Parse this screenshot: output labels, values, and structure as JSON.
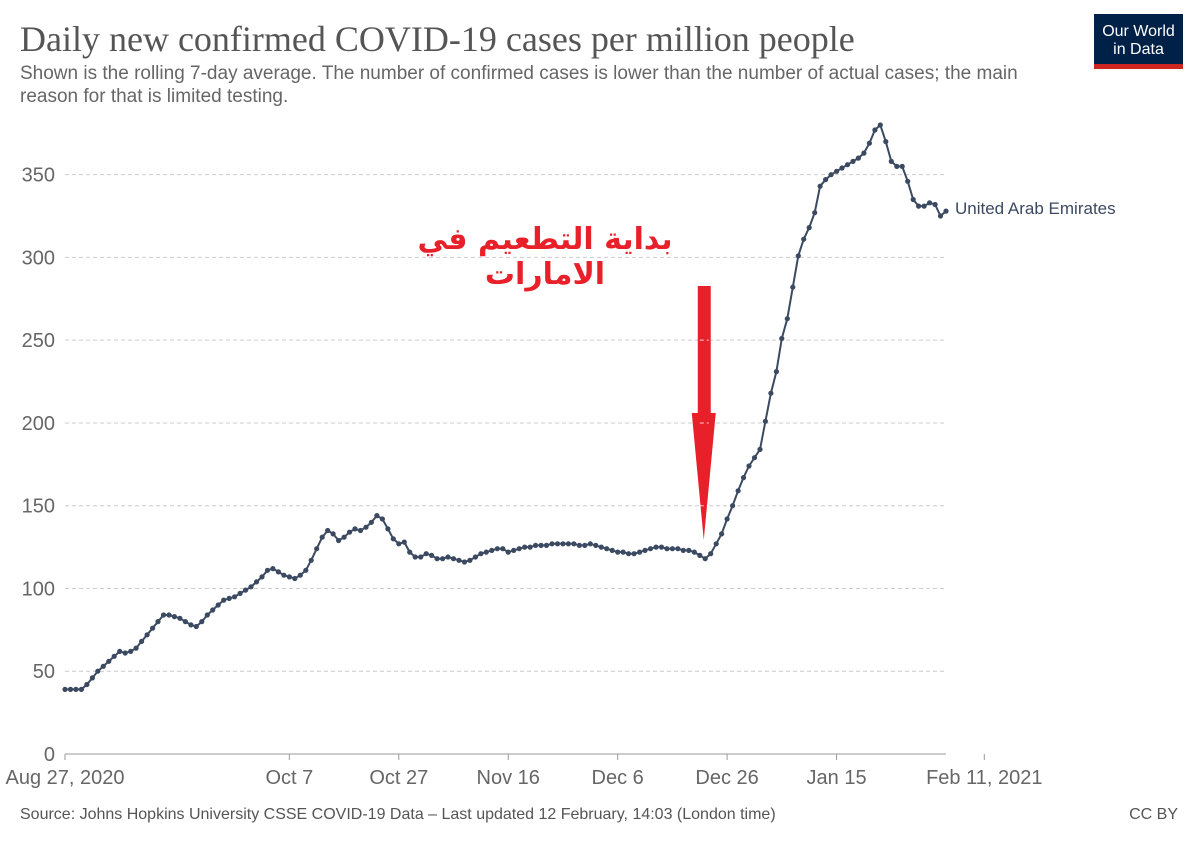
{
  "header": {
    "title": "Daily new confirmed COVID-19 cases per million people",
    "subtitle": "Shown is the rolling 7-day average. The number of confirmed cases is lower than the number of actual cases; the main reason for that is limited testing."
  },
  "logo": {
    "line1": "Our World",
    "line2": "in Data"
  },
  "footer": {
    "source": "Source: Johns Hopkins University CSSE COVID-19 Data – Last updated 12 February, 14:03 (London time)",
    "license": "CC BY"
  },
  "annotation": {
    "text": "بداية التطعيم في الامارات",
    "color": "#e8202a"
  },
  "colors": {
    "series": "#3b4a61",
    "grid": "#cccccc",
    "axis": "#666666",
    "arrow": "#e8202a",
    "logo_bg": "#002147",
    "logo_bar": "#ce261e"
  },
  "chart_data": {
    "type": "line",
    "title": "Daily new confirmed COVID-19 cases per million people",
    "xlabel": "",
    "ylabel": "",
    "ylim": [
      0,
      380
    ],
    "yticks": [
      0,
      50,
      100,
      150,
      200,
      250,
      300,
      350
    ],
    "xticks": [
      {
        "day": 0,
        "label": "Aug 27, 2020"
      },
      {
        "day": 41,
        "label": "Oct 7"
      },
      {
        "day": 61,
        "label": "Oct 27"
      },
      {
        "day": 81,
        "label": "Nov 16"
      },
      {
        "day": 101,
        "label": "Dec 6"
      },
      {
        "day": 121,
        "label": "Dec 26"
      },
      {
        "day": 141,
        "label": "Jan 15"
      },
      {
        "day": 168,
        "label": "Feb 11, 2021"
      }
    ],
    "annotation_day": 116,
    "series": [
      {
        "name": "United Arab Emirates",
        "start_date": "2020-08-27",
        "values": [
          39,
          39,
          39,
          39,
          42,
          46,
          50,
          53,
          56,
          59,
          62,
          61,
          62,
          64,
          68,
          72,
          76,
          80,
          84,
          84,
          83,
          82,
          80,
          78,
          77,
          80,
          84,
          87,
          90,
          93,
          94,
          95,
          97,
          99,
          101,
          104,
          107,
          111,
          112,
          110,
          108,
          107,
          106,
          108,
          111,
          117,
          124,
          131,
          135,
          133,
          129,
          131,
          134,
          136,
          135,
          137,
          140,
          144,
          142,
          136,
          130,
          127,
          128,
          122,
          119,
          119,
          121,
          120,
          118,
          118,
          119,
          118,
          117,
          116,
          117,
          119,
          121,
          122,
          123,
          124,
          124,
          122,
          123,
          124,
          125,
          125,
          126,
          126,
          126,
          127,
          127,
          127,
          127,
          127,
          126,
          126,
          127,
          126,
          125,
          124,
          123,
          122,
          122,
          121,
          121,
          122,
          123,
          124,
          125,
          125,
          124,
          124,
          124,
          123,
          123,
          122,
          120,
          118,
          121,
          127,
          133,
          142,
          150,
          159,
          167,
          174,
          179,
          184,
          201,
          218,
          231,
          251,
          263,
          282,
          301,
          311,
          318,
          327,
          343,
          347,
          350,
          352,
          354,
          356,
          358,
          360,
          363,
          369,
          377,
          380,
          370,
          358,
          355,
          355,
          346,
          335,
          331,
          331,
          333,
          332,
          325,
          328
        ]
      }
    ]
  }
}
